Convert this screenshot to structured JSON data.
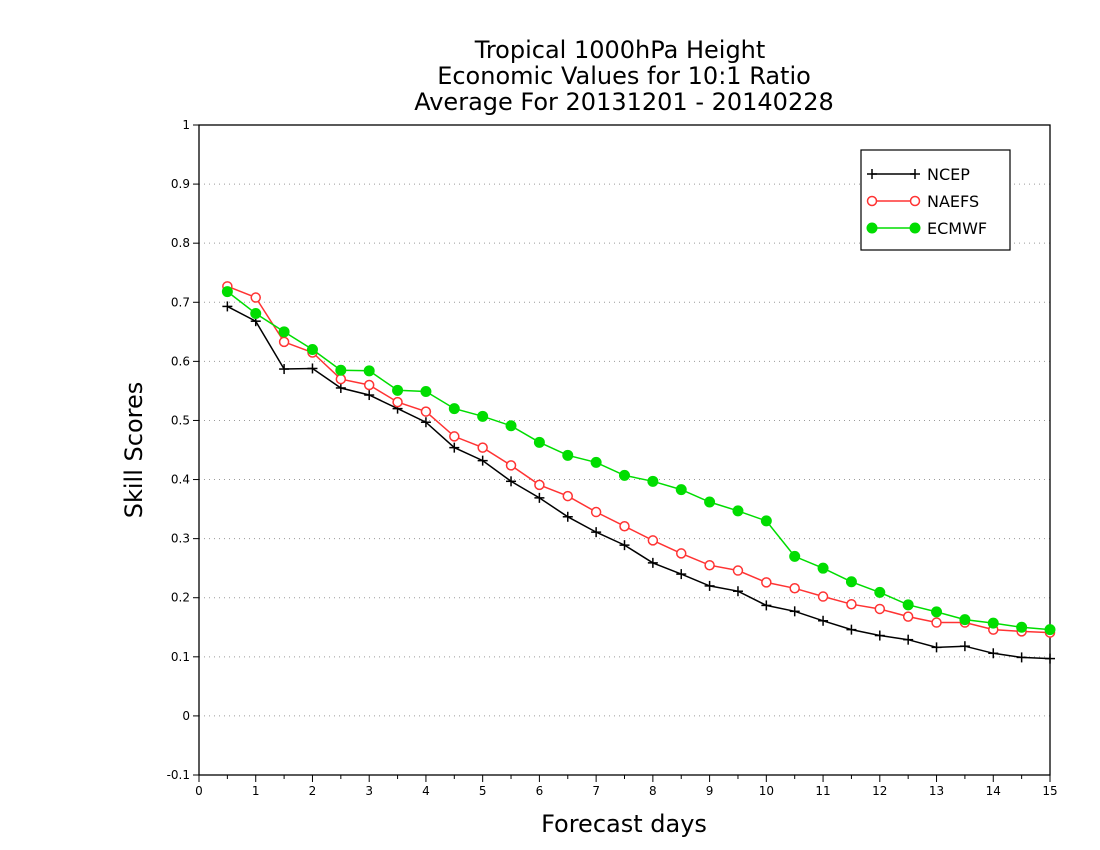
{
  "chart_data": {
    "type": "line",
    "title_lines": [
      "Tropical 1000hPa Height",
      "Economic Values for 10:1 Ratio",
      "Average For 20131201 - 20140228"
    ],
    "xlabel": "Forecast days",
    "ylabel": "Skill Scores",
    "xlim": [
      0,
      15
    ],
    "ylim": [
      -0.1,
      1
    ],
    "x_ticks": [
      0,
      1,
      2,
      3,
      4,
      5,
      6,
      7,
      8,
      9,
      10,
      11,
      12,
      13,
      14,
      15
    ],
    "x_tick_labels": [
      "0",
      "1",
      "2",
      "3",
      "4",
      "5",
      "6",
      "7",
      "8",
      "9",
      "10",
      "11",
      "12",
      "13",
      "14",
      "15"
    ],
    "y_ticks": [
      -0.1,
      0,
      0.1,
      0.2,
      0.3,
      0.4,
      0.5,
      0.6,
      0.7,
      0.8,
      0.9,
      1
    ],
    "y_tick_labels": [
      "-0.1",
      "0",
      "0.1",
      "0.2",
      "0.3",
      "0.4",
      "0.5",
      "0.6",
      "0.7",
      "0.8",
      "0.9",
      "1"
    ],
    "grid": "horizontal dotted",
    "legend_position": "top-right",
    "x": [
      0.5,
      1,
      1.5,
      2,
      2.5,
      3,
      3.5,
      4,
      4.5,
      5,
      5.5,
      6,
      6.5,
      7,
      7.5,
      8,
      8.5,
      9,
      9.5,
      10,
      10.5,
      11,
      11.5,
      12,
      12.5,
      13,
      13.5,
      14,
      14.5,
      15
    ],
    "series": [
      {
        "name": "NCEP",
        "color": "#000000",
        "marker": "plus",
        "values": [
          0.693,
          0.668,
          0.587,
          0.588,
          0.555,
          0.543,
          0.52,
          0.497,
          0.454,
          0.432,
          0.397,
          0.369,
          0.337,
          0.311,
          0.289,
          0.259,
          0.24,
          0.22,
          0.211,
          0.187,
          0.177,
          0.161,
          0.146,
          0.136,
          0.129,
          0.116,
          0.118,
          0.106,
          0.099,
          0.097
        ]
      },
      {
        "name": "NAEFS",
        "color": "#ff3333",
        "marker": "open-circle",
        "values": [
          0.727,
          0.708,
          0.633,
          0.615,
          0.57,
          0.56,
          0.531,
          0.515,
          0.473,
          0.454,
          0.424,
          0.391,
          0.372,
          0.345,
          0.321,
          0.297,
          0.275,
          0.255,
          0.246,
          0.226,
          0.216,
          0.202,
          0.189,
          0.181,
          0.168,
          0.158,
          0.158,
          0.146,
          0.143,
          0.141
        ]
      },
      {
        "name": "ECMWF",
        "color": "#00dd00",
        "marker": "filled-circle",
        "values": [
          0.718,
          0.681,
          0.65,
          0.62,
          0.585,
          0.584,
          0.551,
          0.549,
          0.52,
          0.507,
          0.491,
          0.463,
          0.441,
          0.429,
          0.407,
          0.397,
          0.383,
          0.362,
          0.347,
          0.33,
          0.27,
          0.25,
          0.227,
          0.209,
          0.188,
          0.176,
          0.163,
          0.157,
          0.15,
          0.146
        ]
      }
    ]
  }
}
